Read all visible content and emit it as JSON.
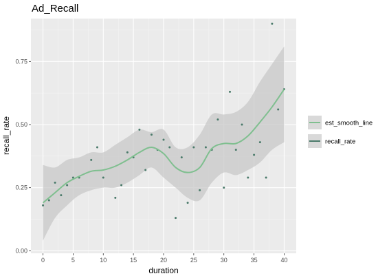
{
  "chart_data": {
    "type": "scatter",
    "title": "Ad_Recall",
    "xlabel": "duration",
    "ylabel": "recall_rate",
    "xlim": [
      -2,
      42
    ],
    "ylim": [
      -0.01,
      0.92
    ],
    "xticks": [
      0,
      5,
      10,
      15,
      20,
      25,
      30,
      35,
      40
    ],
    "yticks": [
      0.0,
      0.25,
      0.5,
      0.75
    ],
    "ytick_labels": [
      "0.00",
      "0.25",
      "0.50",
      "0.75"
    ],
    "grid": true,
    "legend_position": "right",
    "legend": [
      {
        "label": "est_smooth_line",
        "color": "#7fbf8f"
      },
      {
        "label": "recall_rate",
        "color": "#4a7a6a"
      }
    ],
    "series": [
      {
        "name": "recall_rate",
        "kind": "points",
        "color": "#4a7a6a",
        "x": [
          0,
          1,
          2,
          3,
          4,
          5,
          6,
          8,
          9,
          10,
          12,
          13,
          14,
          15,
          16,
          17,
          18,
          19,
          20,
          21,
          22,
          23,
          24,
          25,
          26,
          27,
          28,
          29,
          30,
          31,
          32,
          33,
          34,
          35,
          36,
          37,
          38,
          39,
          40
        ],
        "y": [
          0.18,
          0.2,
          0.27,
          0.22,
          0.26,
          0.29,
          0.29,
          0.36,
          0.41,
          0.29,
          0.21,
          0.26,
          0.39,
          0.37,
          0.48,
          0.32,
          0.46,
          0.4,
          0.44,
          0.41,
          0.13,
          0.37,
          0.19,
          0.41,
          0.24,
          0.41,
          0.4,
          0.52,
          0.25,
          0.63,
          0.4,
          0.5,
          0.29,
          0.38,
          0.43,
          0.29,
          0.9,
          0.56,
          0.64
        ]
      },
      {
        "name": "est_smooth_line",
        "kind": "smooth",
        "color": "#7fbf8f",
        "x": [
          0,
          2,
          4,
          6,
          8,
          10,
          12,
          14,
          16,
          18,
          20,
          22,
          24,
          26,
          28,
          30,
          32,
          34,
          36,
          38,
          40
        ],
        "y": [
          0.19,
          0.23,
          0.27,
          0.295,
          0.315,
          0.32,
          0.335,
          0.36,
          0.39,
          0.41,
          0.385,
          0.33,
          0.31,
          0.33,
          0.405,
          0.425,
          0.425,
          0.455,
          0.51,
          0.57,
          0.64
        ],
        "ci_lower": [
          0.04,
          0.13,
          0.18,
          0.22,
          0.24,
          0.25,
          0.25,
          0.27,
          0.3,
          0.33,
          0.29,
          0.25,
          0.21,
          0.2,
          0.27,
          0.31,
          0.3,
          0.32,
          0.35,
          0.4,
          0.43
        ],
        "ci_upper": [
          0.34,
          0.33,
          0.36,
          0.37,
          0.39,
          0.39,
          0.42,
          0.45,
          0.48,
          0.47,
          0.48,
          0.41,
          0.41,
          0.46,
          0.54,
          0.54,
          0.55,
          0.59,
          0.67,
          0.74,
          0.81
        ]
      }
    ]
  }
}
